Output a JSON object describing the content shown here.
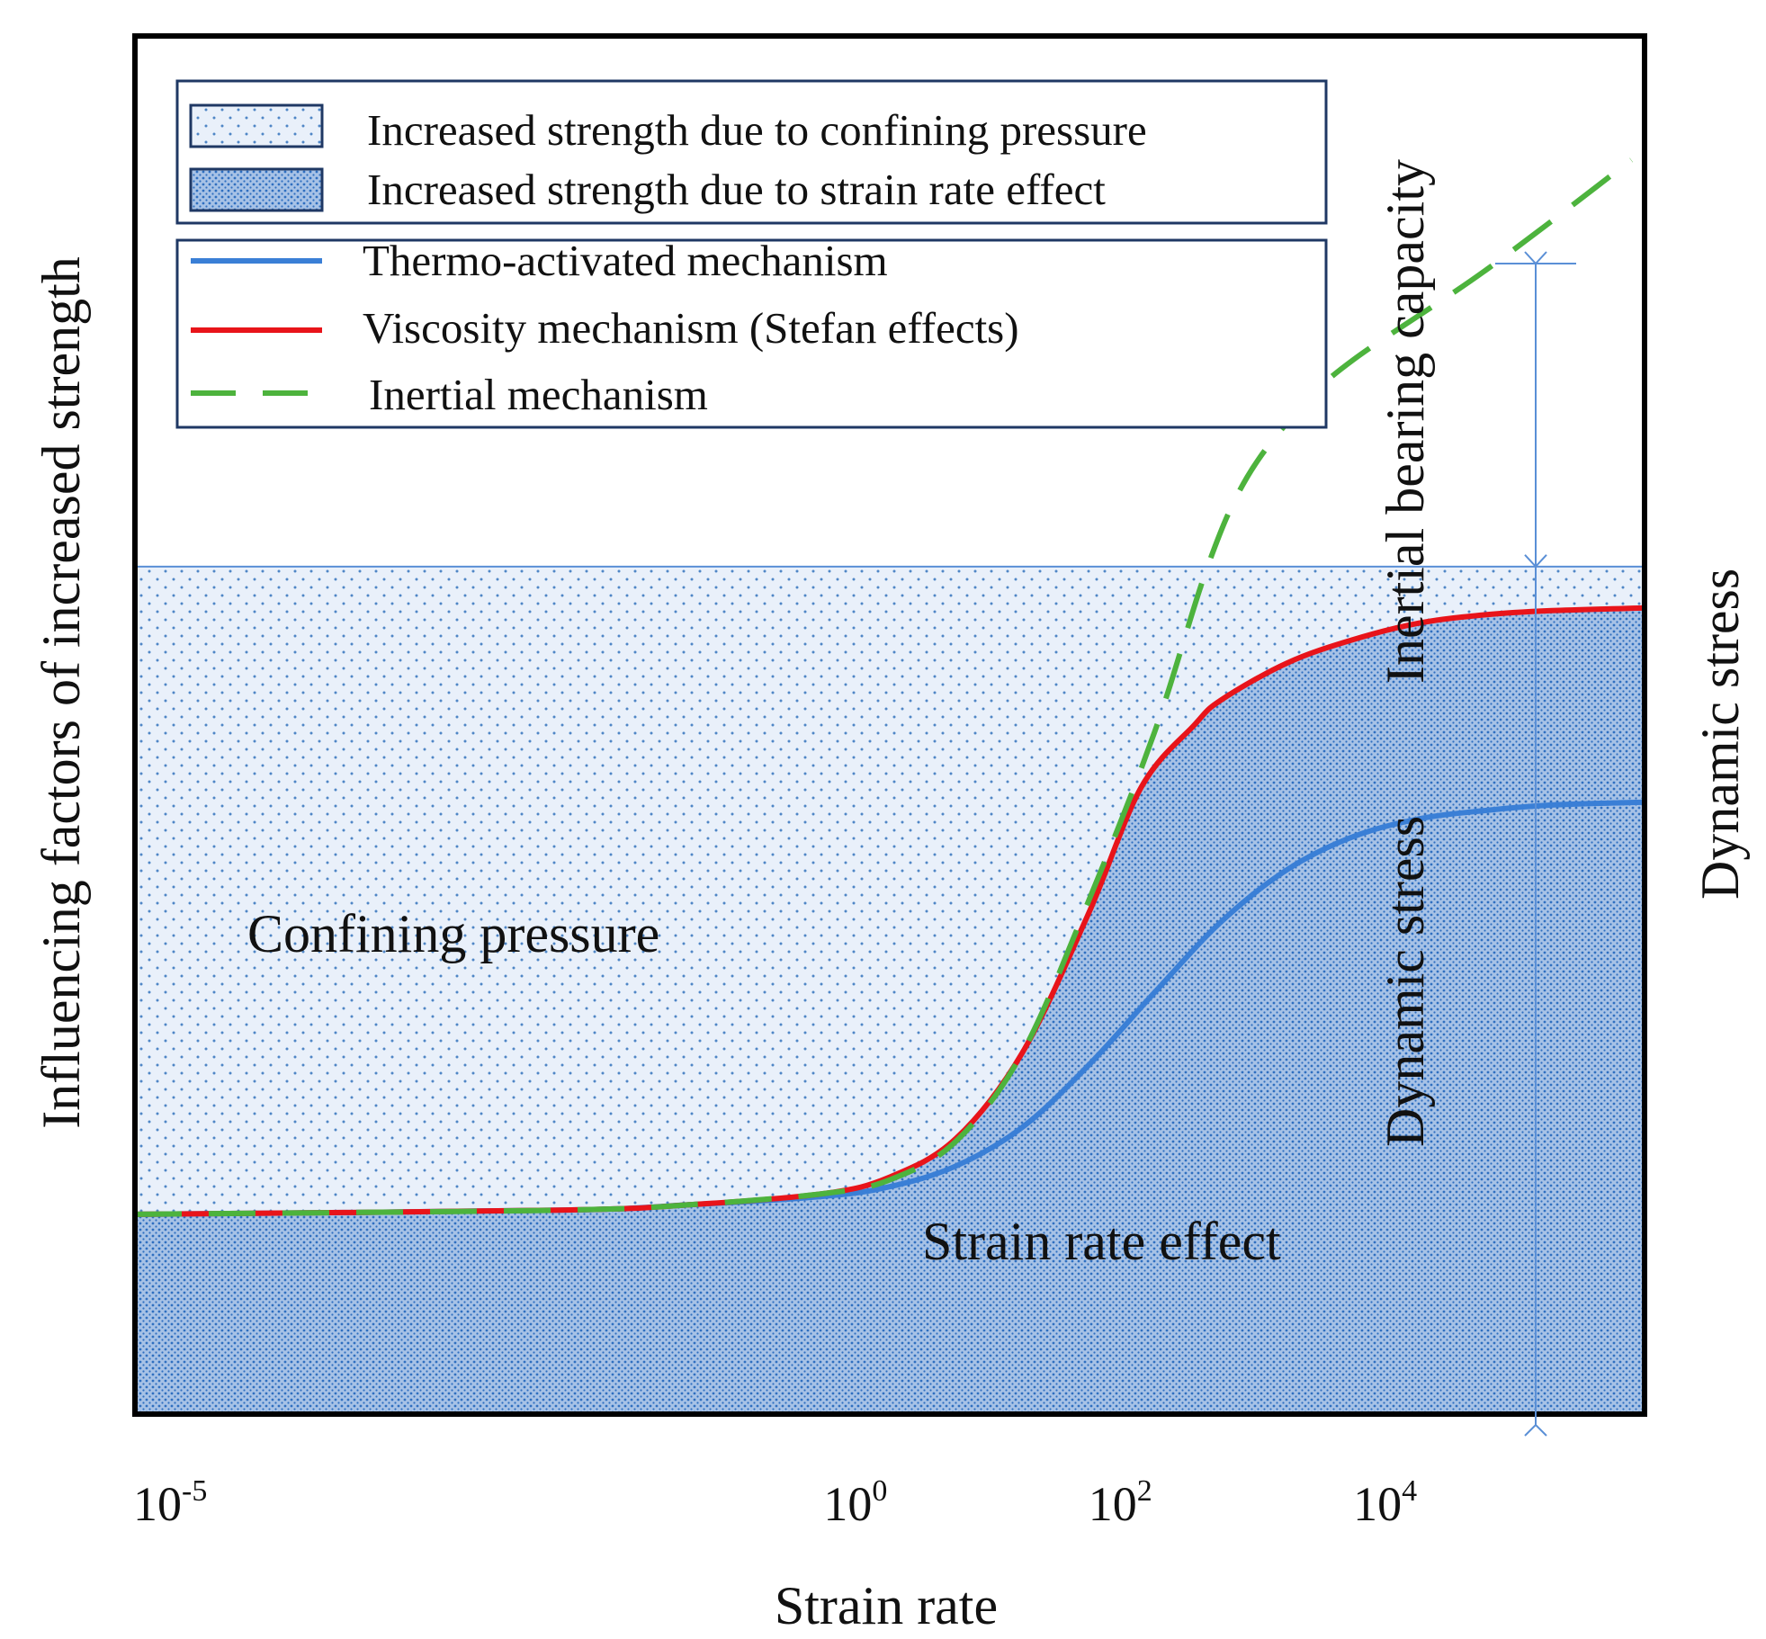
{
  "colors": {
    "confining_fill": "#e9f0fa",
    "confining_dot": "#4f86c6",
    "strain_fill": "#a7c2e6",
    "strain_dot": "#2f6fc0",
    "thermo": "#3a7fd6",
    "viscosity": "#e8141a",
    "inertial": "#4db33d",
    "annotation": "#5a8fd6",
    "frame": "#000000"
  },
  "chart_data": {
    "type": "line",
    "title": "",
    "xlabel": "Strain rate",
    "ylabel": "Influencing factors of increased strength",
    "x_scale": "log",
    "xlim": [
      -5.2,
      6.2
    ],
    "ylim": [
      0,
      1
    ],
    "x_ticks": [
      {
        "exp": -5,
        "base": "10",
        "sup": "-5"
      },
      {
        "exp": 0,
        "base": "10",
        "sup": "0"
      },
      {
        "exp": 2,
        "base": "10",
        "sup": "2"
      },
      {
        "exp": 4,
        "base": "10",
        "sup": "4"
      }
    ],
    "regions": [
      {
        "name": "Increased strength due to confining pressure",
        "label": "Confining pressure",
        "y_top": 0.615
      },
      {
        "name": "Increased strength due to strain rate effect",
        "label": "Strain rate effect",
        "under_series": "Viscosity mechanism (Stefan effects)"
      }
    ],
    "series": [
      {
        "name": "Thermo-activated mechanism",
        "style": "solid",
        "color": "#3a7fd6",
        "points": [
          [
            -5.2,
            0.145
          ],
          [
            -2,
            0.148
          ],
          [
            -1,
            0.152
          ],
          [
            0,
            0.158
          ],
          [
            0.5,
            0.165
          ],
          [
            1,
            0.18
          ],
          [
            1.5,
            0.208
          ],
          [
            2,
            0.253
          ],
          [
            2.5,
            0.306
          ],
          [
            3,
            0.357
          ],
          [
            3.5,
            0.395
          ],
          [
            4,
            0.419
          ],
          [
            4.5,
            0.432
          ],
          [
            5,
            0.438
          ],
          [
            5.5,
            0.442
          ],
          [
            6.2,
            0.444
          ]
        ]
      },
      {
        "name": "Viscosity mechanism (Stefan effects)",
        "style": "solid",
        "color": "#e8141a",
        "points": [
          [
            -5.2,
            0.145
          ],
          [
            -2,
            0.148
          ],
          [
            -1,
            0.152
          ],
          [
            0,
            0.16
          ],
          [
            0.5,
            0.172
          ],
          [
            1,
            0.2
          ],
          [
            1.5,
            0.262
          ],
          [
            2,
            0.363
          ],
          [
            2.4,
            0.455
          ],
          [
            2.8,
            0.5
          ],
          [
            3,
            0.518
          ],
          [
            3.5,
            0.545
          ],
          [
            4,
            0.562
          ],
          [
            4.5,
            0.574
          ],
          [
            5,
            0.58
          ],
          [
            5.5,
            0.583
          ],
          [
            6.2,
            0.585
          ]
        ]
      },
      {
        "name": "Inertial mechanism",
        "style": "dashed",
        "color": "#4db33d",
        "points": [
          [
            -5.2,
            0.145
          ],
          [
            -2,
            0.148
          ],
          [
            -1,
            0.152
          ],
          [
            0,
            0.16
          ],
          [
            0.5,
            0.17
          ],
          [
            1,
            0.198
          ],
          [
            1.5,
            0.262
          ],
          [
            2,
            0.372
          ],
          [
            2.5,
            0.495
          ],
          [
            2.9,
            0.615
          ],
          [
            3.2,
            0.68
          ],
          [
            3.6,
            0.73
          ],
          [
            4,
            0.765
          ],
          [
            5,
            0.83
          ],
          [
            6.1,
            0.91
          ]
        ]
      }
    ],
    "annotations": [
      {
        "text": "Inertial bearing capacity",
        "orientation": "vertical"
      },
      {
        "text": "Dynamic stress",
        "orientation": "vertical",
        "placement": "inside"
      },
      {
        "text": "Dynamic stress",
        "orientation": "vertical",
        "placement": "outside"
      }
    ],
    "legend": {
      "areas": [
        "Increased strength due to confining pressure",
        "Increased strength due to strain rate effect"
      ],
      "lines": [
        "Thermo-activated mechanism",
        "Viscosity mechanism (Stefan effects)",
        "Inertial mechanism"
      ]
    }
  }
}
